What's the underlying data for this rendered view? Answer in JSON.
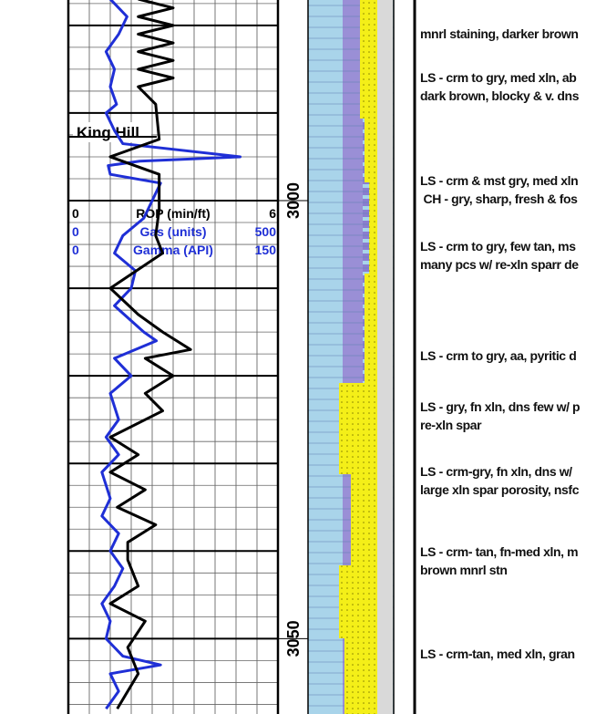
{
  "log": {
    "depth_range": [
      2977.1,
      3058.6
    ],
    "depth_labels": [
      3000,
      3050
    ],
    "scales": [
      {
        "min": 0,
        "name": "ROP (min/ft)",
        "max": 6,
        "color": "#000000"
      },
      {
        "min": 0,
        "name": "Gas (units)",
        "max": 500,
        "color": "#1f2fd6"
      },
      {
        "min": 0,
        "name": "Gamma (API)",
        "max": 150,
        "color": "#1f2fd6"
      }
    ],
    "formation": "King Hill",
    "curves": [
      {
        "scale": 1,
        "color": "#1f2fd6",
        "depths": [
          2977,
          2979,
          2981,
          2983,
          2985,
          2987,
          2989,
          2990,
          2992,
          2993.5,
          2995,
          2995.5,
          2996,
          2997,
          2998,
          3000,
          3002,
          3004,
          3006,
          3008,
          3010,
          3012,
          3015,
          3016,
          3018,
          3020,
          3022,
          3025,
          3027,
          3029,
          3031,
          3034,
          3036,
          3038,
          3040,
          3042,
          3044,
          3046,
          3048,
          3050,
          3052,
          3053,
          3054,
          3056,
          3058
        ],
        "values": [
          100,
          140,
          120,
          90,
          110,
          100,
          115,
          90,
          110,
          130,
          410,
          170,
          95,
          100,
          220,
          200,
          180,
          130,
          110,
          160,
          150,
          110,
          180,
          210,
          110,
          150,
          100,
          120,
          90,
          120,
          80,
          100,
          80,
          120,
          100,
          130,
          110,
          80,
          100,
          90,
          130,
          220,
          100,
          120,
          90
        ]
      },
      {
        "scale": 0,
        "color": "#000000",
        "depths": [
          2977,
          2978,
          2979,
          2980,
          2981,
          2982,
          2983,
          2984,
          2985,
          2986,
          2987,
          2989,
          2993,
          2995,
          2997,
          3001,
          3004,
          3006,
          3010,
          3013,
          3015,
          3017,
          3018,
          3020,
          3022,
          3024,
          3027,
          3029,
          3031,
          3033,
          3035,
          3037,
          3039,
          3041,
          3044,
          3046,
          3048,
          3051,
          3054,
          3058
        ],
        "values": [
          2.0,
          3.0,
          2.0,
          3.0,
          2.0,
          3.0,
          2.0,
          3.0,
          2.0,
          3.0,
          2.0,
          2.5,
          2.6,
          1.2,
          2.6,
          2.6,
          2.5,
          2.7,
          1.2,
          2.0,
          2.7,
          3.5,
          2.2,
          3.0,
          2.2,
          2.7,
          1.2,
          2.0,
          1.2,
          2.2,
          1.4,
          2.5,
          1.7,
          1.7,
          2.0,
          1.2,
          2.2,
          1.7,
          2.0,
          1.4
        ]
      }
    ],
    "descriptions": [
      [
        "mnrl staining, darker brown"
      ],
      [
        "LS - crm to gry, med xln, ab",
        "dark brown, blocky & v. dns"
      ],
      [
        "LS - crm & mst gry, med xln",
        " CH - gry, sharp, fresh & fos"
      ],
      [
        "LS - crm to gry, few tan, ms",
        "many pcs w/ re-xln sparr de"
      ],
      [
        "LS - crm to gry, aa, pyritic d"
      ],
      [
        "LS - gry, fn xln, dns few w/ p",
        "re-xln spar"
      ],
      [
        "LS - crm-gry, fn xln, dns w/",
        "large xln spar porosity, nsfc"
      ],
      [
        "LS - crm- tan, fn-med xln, m",
        "brown mnrl stn"
      ],
      [
        "LS - crm-tan, med xln, gran"
      ]
    ]
  }
}
